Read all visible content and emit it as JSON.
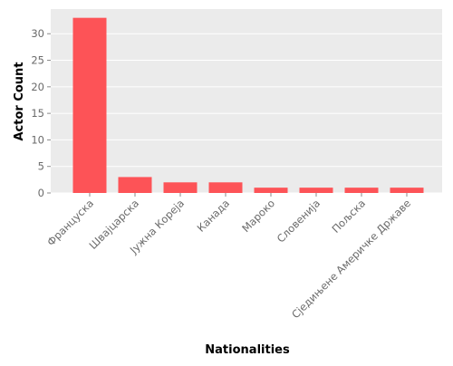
{
  "chart_data": {
    "type": "bar",
    "title": "",
    "xlabel": "Nationalities",
    "ylabel": "Actor Count",
    "categories": [
      "Француска",
      "Швајцарска",
      "Јужна Кореја",
      "Канада",
      "Мароко",
      "Словенија",
      "Пољска",
      "Сједињене Америчке Државе"
    ],
    "values": [
      33,
      3,
      2,
      2,
      1,
      1,
      1,
      1
    ],
    "ylim": [
      0,
      34.65
    ],
    "yticks": [
      0,
      5,
      10,
      15,
      20,
      25,
      30
    ],
    "grid": true,
    "bar_color": "#fd5357",
    "background_color": "#ebebeb",
    "grid_color": "#ffffff",
    "tick_label_color": "#6b6b6b",
    "axis_label_color": "#6b6b6b"
  }
}
